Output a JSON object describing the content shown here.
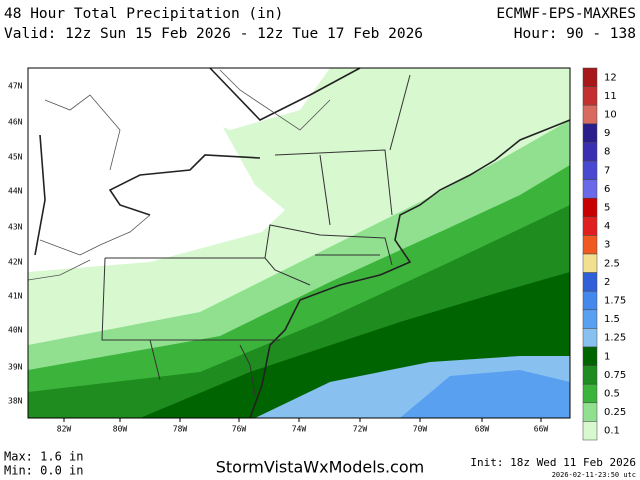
{
  "header": {
    "title": "48 Hour Total Precipitation (in)",
    "valid": "Valid: 12z Sun 15 Feb 2026 - 12z Tue 17 Feb 2026",
    "model": "ECMWF-EPS-MAXRES",
    "hours": "Hour: 90 - 138"
  },
  "lat_labels": [
    "47N",
    "46N",
    "45N",
    "44N",
    "43N",
    "42N",
    "41N",
    "40N",
    "39N",
    "38N"
  ],
  "lon_labels": [
    "82W",
    "80W",
    "78W",
    "76W",
    "74W",
    "72W",
    "70W",
    "68W",
    "66W"
  ],
  "colorbar": [
    {
      "label": "12",
      "color": "#a81818"
    },
    {
      "label": "11",
      "color": "#c43030"
    },
    {
      "label": "10",
      "color": "#d86a60"
    },
    {
      "label": "9",
      "color": "#2a1f8a"
    },
    {
      "label": "8",
      "color": "#3a2fb0"
    },
    {
      "label": "7",
      "color": "#4848d0"
    },
    {
      "label": "6",
      "color": "#6a6ae8"
    },
    {
      "label": "5",
      "color": "#c80000"
    },
    {
      "label": "4",
      "color": "#e02020"
    },
    {
      "label": "3",
      "color": "#f05a20"
    },
    {
      "label": "2.5",
      "color": "#f0e090"
    },
    {
      "label": "2",
      "color": "#3060d8"
    },
    {
      "label": "1.75",
      "color": "#4488ee"
    },
    {
      "label": "1.5",
      "color": "#5aa0f0"
    },
    {
      "label": "1.25",
      "color": "#88c0f0"
    },
    {
      "label": "1",
      "color": "#006400"
    },
    {
      "label": "0.75",
      "color": "#1e8c1e"
    },
    {
      "label": "0.5",
      "color": "#3cb43c"
    },
    {
      "label": "0.25",
      "color": "#90e090"
    },
    {
      "label": "0.1",
      "color": "#d8f8d0"
    }
  ],
  "footer": {
    "max": "Max: 1.6 in",
    "min": "Min: 0.0 in",
    "site": "StormVistaWxModels.com",
    "init": "Init: 18z Wed 11 Feb 2026",
    "stamp": "2026-02-11-23:50 utc"
  }
}
